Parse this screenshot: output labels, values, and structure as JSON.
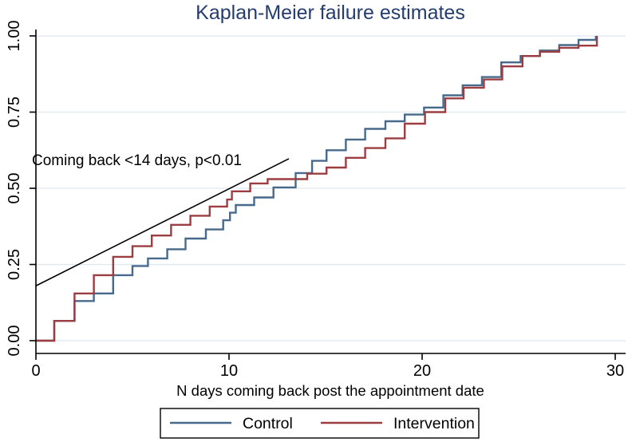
{
  "title": "Kaplan-Meier failure estimates",
  "palette": {
    "title_color": "#253c6e",
    "control_color": "#46698c",
    "intervention_color": "#9c3d42",
    "grid_color": "#dde8f0",
    "axis_color": "#000000",
    "background": "#ffffff"
  },
  "annotation": {
    "text": "Coming back <14 days, p<0.01"
  },
  "legend": {
    "items": [
      {
        "label": "Control",
        "color": "#46698c"
      },
      {
        "label": "Intervention",
        "color": "#9c3d42"
      }
    ]
  },
  "chart_data": {
    "type": "line",
    "subtype": "step-km-failure",
    "title": "Kaplan-Meier failure estimates",
    "xlabel": "N days coming back post the appointment date",
    "ylabel": "",
    "xlim": [
      0,
      30
    ],
    "ylim": [
      0,
      1
    ],
    "xticks": [
      0,
      10,
      20,
      30
    ],
    "ytick_labels": [
      "0.00",
      "0.25",
      "0.50",
      "0.75",
      "1.00"
    ],
    "ytick_values": [
      0,
      0.25,
      0.5,
      0.75,
      1.0
    ],
    "grid": "horizontal",
    "legend_position": "bottom",
    "annotation": {
      "text": "Coming back <14 days, p<0.01",
      "line_from_xy": [
        0,
        0.18
      ],
      "line_to_xy": [
        13.1,
        0.597
      ]
    },
    "series": [
      {
        "name": "Control",
        "color": "#46698c",
        "points": [
          [
            0,
            0
          ],
          [
            0.95,
            0.065
          ],
          [
            2,
            0.13
          ],
          [
            3,
            0.155
          ],
          [
            4,
            0.215
          ],
          [
            5,
            0.245
          ],
          [
            5.8,
            0.27
          ],
          [
            6.8,
            0.3
          ],
          [
            7.75,
            0.335
          ],
          [
            8.8,
            0.365
          ],
          [
            9.7,
            0.395
          ],
          [
            10.05,
            0.42
          ],
          [
            10.35,
            0.445
          ],
          [
            11.3,
            0.47
          ],
          [
            12.3,
            0.503
          ],
          [
            13.45,
            0.55
          ],
          [
            14.3,
            0.59
          ],
          [
            15.05,
            0.625
          ],
          [
            16.05,
            0.66
          ],
          [
            17.05,
            0.695
          ],
          [
            18.1,
            0.72
          ],
          [
            19.1,
            0.742
          ],
          [
            20.1,
            0.765
          ],
          [
            21.1,
            0.805
          ],
          [
            22.1,
            0.838
          ],
          [
            23.1,
            0.865
          ],
          [
            24.1,
            0.913
          ],
          [
            25.1,
            0.934
          ],
          [
            26.1,
            0.952
          ],
          [
            27.1,
            0.97
          ],
          [
            28.1,
            0.987
          ],
          [
            29,
            1.0
          ]
        ]
      },
      {
        "name": "Intervention",
        "color": "#9c3d42",
        "points": [
          [
            0,
            0
          ],
          [
            0.95,
            0.065
          ],
          [
            2,
            0.155
          ],
          [
            3,
            0.215
          ],
          [
            4,
            0.275
          ],
          [
            5,
            0.31
          ],
          [
            6,
            0.345
          ],
          [
            7,
            0.38
          ],
          [
            8,
            0.41
          ],
          [
            9,
            0.44
          ],
          [
            9.9,
            0.463
          ],
          [
            10.15,
            0.49
          ],
          [
            11.1,
            0.516
          ],
          [
            12,
            0.53
          ],
          [
            14.05,
            0.548
          ],
          [
            15.05,
            0.568
          ],
          [
            16.05,
            0.6
          ],
          [
            17.05,
            0.632
          ],
          [
            18.1,
            0.664
          ],
          [
            19.1,
            0.712
          ],
          [
            20.15,
            0.75
          ],
          [
            21.2,
            0.795
          ],
          [
            22.15,
            0.83
          ],
          [
            23.2,
            0.857
          ],
          [
            24.15,
            0.9
          ],
          [
            25.2,
            0.934
          ],
          [
            26.1,
            0.948
          ],
          [
            27.1,
            0.961
          ],
          [
            28.1,
            0.968
          ],
          [
            29.05,
            1.0
          ]
        ]
      }
    ]
  }
}
